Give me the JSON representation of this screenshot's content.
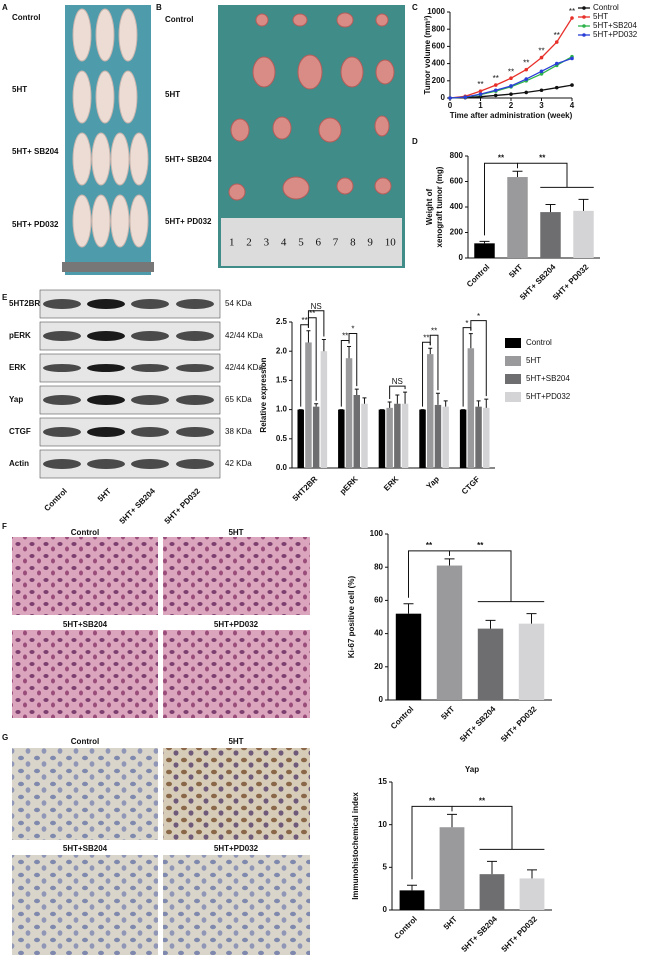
{
  "panel_labels": [
    "A",
    "B",
    "C",
    "D",
    "E",
    "F",
    "G"
  ],
  "panel_a": {
    "labels": [
      "Control",
      "5HT",
      "5HT+ SB204",
      "5HT+ PD032"
    ]
  },
  "panel_b": {
    "labels": [
      "Control",
      "5HT",
      "5HT+ SB204",
      "5HT+ PD032"
    ],
    "ruler": [
      1,
      2,
      3,
      4,
      5,
      6,
      7,
      8,
      9,
      10
    ]
  },
  "blot": {
    "proteins": [
      "5HT2BR",
      "pERK",
      "ERK",
      "Yap",
      "CTGF",
      "Actin"
    ],
    "sizes": [
      "54 KDa",
      "42/44 KDa",
      "42/44 KDa",
      "65 KDa",
      "38 KDa",
      "42 KDa"
    ],
    "lanes": [
      "Control",
      "5HT",
      "5HT+ SB204",
      "5HT+ PD032"
    ]
  },
  "panel_f": {
    "labels": [
      "Control",
      "5HT",
      "5HT+SB204",
      "5HT+PD032"
    ]
  },
  "panel_g": {
    "labels": [
      "Control",
      "5HT",
      "5HT+SB204",
      "5HT+PD032"
    ]
  },
  "chart_data": [
    {
      "type": "line",
      "xlabel": "Time after administration (week)",
      "ylabel": "Tumor volume (mm³)",
      "x": [
        0,
        0.5,
        1,
        1.5,
        2,
        2.5,
        3,
        3.5,
        4
      ],
      "xlim": [
        0,
        4
      ],
      "xticks": [
        0,
        1,
        2,
        3,
        4
      ],
      "ylim": [
        0,
        1000
      ],
      "yticks": [
        0,
        200,
        400,
        600,
        800,
        1000
      ],
      "series": [
        {
          "name": "Control",
          "color": "#111111",
          "values": [
            0,
            5,
            15,
            30,
            45,
            65,
            90,
            120,
            150
          ]
        },
        {
          "name": "5HT",
          "color": "#e8302a",
          "values": [
            0,
            20,
            80,
            150,
            230,
            330,
            470,
            650,
            930
          ]
        },
        {
          "name": "5HT+SB204",
          "color": "#2db34a",
          "values": [
            0,
            10,
            40,
            80,
            130,
            200,
            280,
            380,
            480
          ]
        },
        {
          "name": "5HT+PD032",
          "color": "#2a3fd8",
          "values": [
            0,
            10,
            45,
            90,
            140,
            220,
            310,
            400,
            460
          ]
        }
      ],
      "annotations": [
        "**",
        "**",
        "**",
        "**",
        "**",
        "**",
        "**"
      ],
      "legend": "right"
    },
    {
      "type": "bar",
      "ylabel": [
        "Weight of",
        "xenograft tumor (mg)"
      ],
      "categories": [
        "Control",
        "5HT",
        "5HT+ SB204",
        "5HT+ PD032"
      ],
      "values": [
        115,
        635,
        360,
        370
      ],
      "errors": [
        15,
        45,
        60,
        90
      ],
      "colors": [
        "#000000",
        "#9a9a9c",
        "#6e6e70",
        "#d4d4d6"
      ],
      "ylim": [
        0,
        800
      ],
      "yticks": [
        0,
        200,
        400,
        600,
        800
      ],
      "annotations": [
        "**",
        "**"
      ]
    },
    {
      "type": "grouped-bar",
      "ylabel": "Relative expression",
      "categories": [
        "5HT2BR",
        "pERK",
        "ERK",
        "Yap",
        "CTGF"
      ],
      "series": [
        {
          "name": "Control",
          "color": "#000000",
          "values": [
            1,
            1,
            1,
            1,
            1
          ],
          "errors": [
            0,
            0,
            0,
            0,
            0
          ]
        },
        {
          "name": "5HT",
          "color": "#9a9a9c",
          "values": [
            2.15,
            1.88,
            1.03,
            1.95,
            2.05
          ],
          "errors": [
            0.2,
            0.2,
            0.1,
            0.1,
            0.25
          ]
        },
        {
          "name": "5HT+SB204",
          "color": "#6e6e70",
          "values": [
            1.05,
            1.25,
            1.1,
            1.08,
            1.05
          ],
          "errors": [
            0.05,
            0.1,
            0.15,
            0.2,
            0.1
          ]
        },
        {
          "name": "5HT+PD032",
          "color": "#d4d4d6",
          "values": [
            2.0,
            1.1,
            1.1,
            1.05,
            1.03
          ],
          "errors": [
            0.2,
            0.1,
            0.2,
            0.1,
            0.15
          ]
        }
      ],
      "ylim": [
        0,
        2.5
      ],
      "yticks": [
        {
          "value": 0,
          "label": "0.0"
        },
        0.5,
        {
          "value": 1,
          "label": "1.0"
        },
        1.5,
        {
          "value": 2,
          "label": "2.0"
        },
        2.5
      ],
      "annotations": [
        "**",
        "**",
        "NS",
        "**",
        "*",
        "NS",
        "**",
        "**",
        "*",
        "*"
      ],
      "legend": "right"
    },
    {
      "type": "bar",
      "ylabel": "Ki-67 positive cell (%)",
      "categories": [
        "Control",
        "5HT",
        "5HT+ SB204",
        "5HT+ PD032"
      ],
      "values": [
        52,
        81,
        43,
        46
      ],
      "errors": [
        6,
        4,
        5,
        6
      ],
      "colors": [
        "#000000",
        "#9a9a9c",
        "#6e6e70",
        "#d4d4d6"
      ],
      "ylim": [
        0,
        100
      ],
      "yticks": [
        0,
        20,
        40,
        60,
        80,
        100
      ],
      "annotations": [
        "**",
        "**"
      ]
    },
    {
      "type": "bar",
      "title": "Yap",
      "ylabel": "Immunohistochemical index",
      "categories": [
        "Control",
        "5HT",
        "5HT+ SB204",
        "5HT+ PD032"
      ],
      "values": [
        2.3,
        9.7,
        4.2,
        3.7
      ],
      "errors": [
        0.6,
        1.5,
        1.5,
        1.0
      ],
      "colors": [
        "#000000",
        "#9a9a9c",
        "#6e6e70",
        "#d4d4d6"
      ],
      "ylim": [
        0,
        15
      ],
      "yticks": [
        0,
        5,
        10,
        15
      ],
      "annotations": [
        "**",
        "**"
      ]
    }
  ]
}
